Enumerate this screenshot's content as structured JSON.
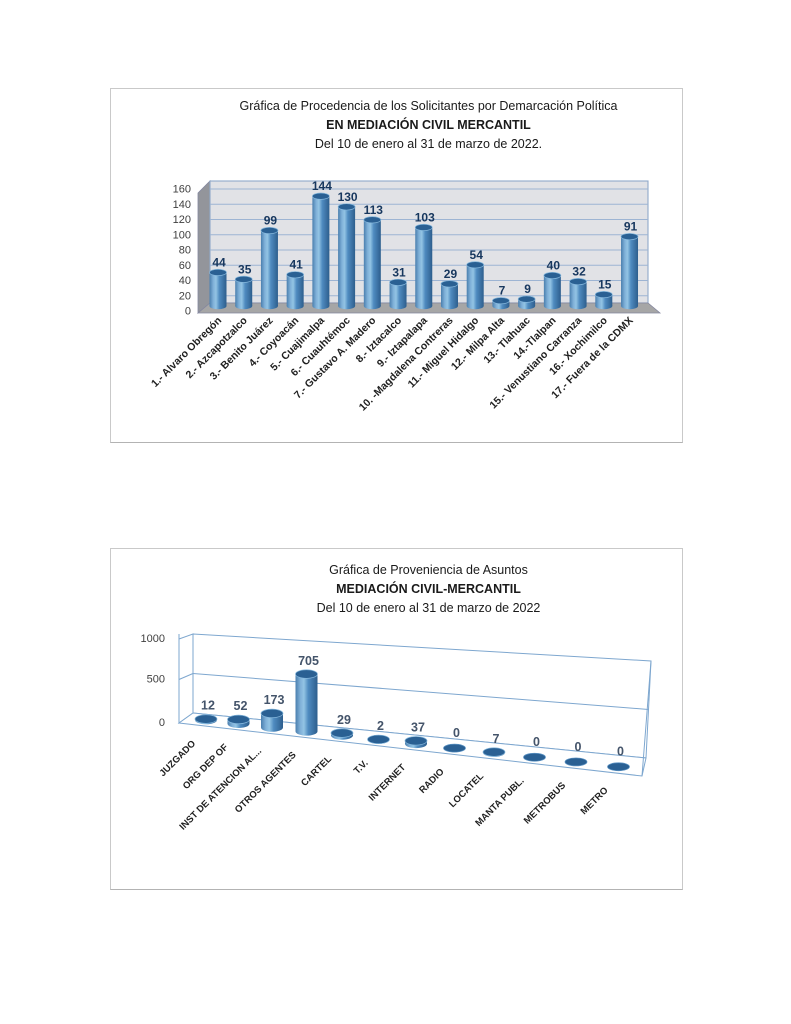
{
  "page": {
    "background": "#ffffff"
  },
  "palette": {
    "bar_side": "#4f8bc0",
    "bar_highlight": "#93c4e4",
    "bar_shadow": "#2d5e8d",
    "bar_top": "#2a6093",
    "bar_top_rim": "#86b8dd",
    "grid_line": "#9db4d3",
    "frame_line": "#7ea7cf",
    "plot_background": "#e1e2e6",
    "wall_gray": "#93959b",
    "floor_gray": "#a6a6a6",
    "axis_text": "#3f3f3f",
    "category_text": "#1f1f1f"
  },
  "chart_data": [
    {
      "type": "bar",
      "style": "3d-cylinder",
      "title": "Gráfica de Procedencia de los Solicitantes por Demarcación Política",
      "subtitle": "EN MEDIACIÓN CIVIL MERCANTIL",
      "period": "Del 10 de enero al 31 de marzo de 2022.",
      "categories": [
        "1.- Alvaro Obregón",
        "2.- Azcapotzalco",
        "3.- Benito Juárez",
        "4.- Coyoacán",
        "5.- Cuajimalpa",
        "6.- Cuauhtémoc",
        "7.- Gustavo A. Madero",
        "8.- Iztacalco",
        "9.- Iztapalapa",
        "10. -Magdalena Contreras",
        "11.- Miguel Hidalgo",
        "12.- Milpa Alta",
        "13.- Tlahuac",
        "14.-Tlalpan",
        "15.- Venustiano Carranza",
        "16.- Xochimilco",
        "17.- Fuera de la CDMX"
      ],
      "values": [
        44,
        35,
        99,
        41,
        144,
        130,
        113,
        31,
        103,
        29,
        54,
        7,
        9,
        40,
        32,
        15,
        91
      ],
      "xlabel": "",
      "ylabel": "",
      "ylim": [
        0,
        160
      ],
      "yticks": [
        0,
        20,
        40,
        60,
        80,
        100,
        120,
        140,
        160
      ],
      "grid": true,
      "legend": "none",
      "value_label_color": "#17375e"
    },
    {
      "type": "bar",
      "style": "3d-cylinder-perspective",
      "title": "Gráfica de Proveniencia de Asuntos",
      "subtitle": "MEDIACIÓN CIVIL-MERCANTIL",
      "period": "Del 10 de enero al 31 de marzo de 2022",
      "categories": [
        "JUZGADO",
        "ORG DEP OF",
        "INST DE ATENCION AL...",
        "OTROS AGENTES",
        "CARTEL",
        "T.V.",
        "INTERNET",
        "RADIO",
        "LOCATEL",
        "MANTA PUBL.",
        "METROBUS",
        "METRO"
      ],
      "values": [
        12,
        52,
        173,
        705,
        29,
        2,
        37,
        0,
        7,
        0,
        0,
        0
      ],
      "xlabel": "",
      "ylabel": "",
      "ylim": [
        0,
        1000
      ],
      "yticks": [
        0,
        500,
        1000
      ],
      "grid": true,
      "legend": "none",
      "value_label_color": "#44546a"
    }
  ]
}
